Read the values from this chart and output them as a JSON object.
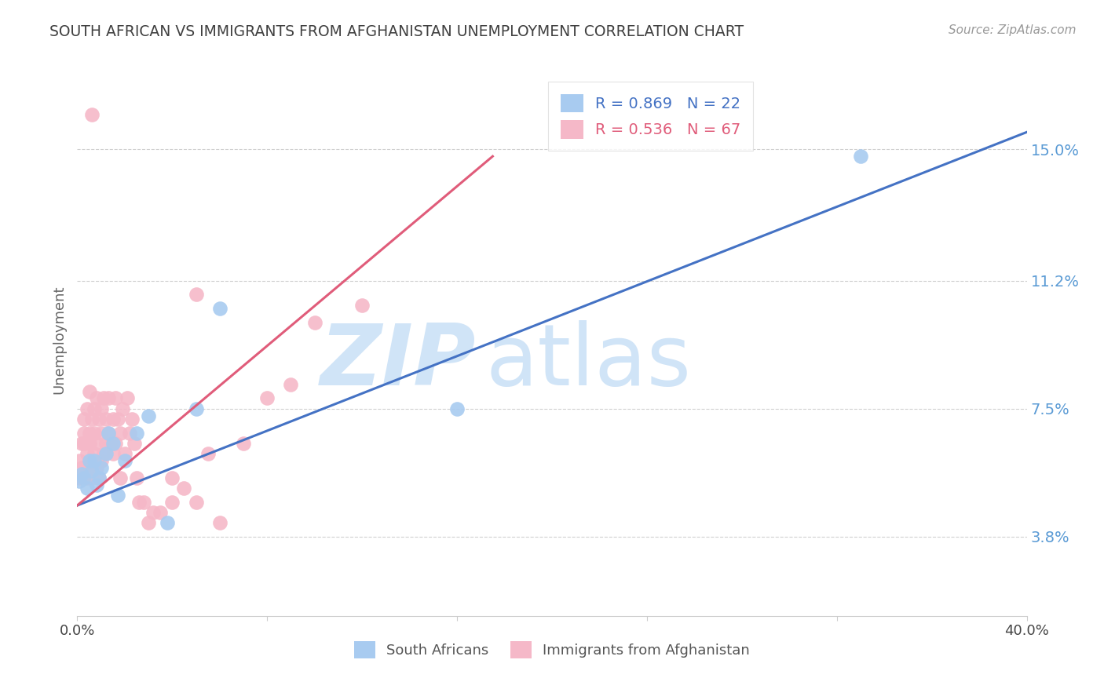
{
  "title": "SOUTH AFRICAN VS IMMIGRANTS FROM AFGHANISTAN UNEMPLOYMENT CORRELATION CHART",
  "source": "Source: ZipAtlas.com",
  "ylabel": "Unemployment",
  "yticks": [
    0.038,
    0.075,
    0.112,
    0.15
  ],
  "ytick_labels": [
    "3.8%",
    "7.5%",
    "11.2%",
    "15.0%"
  ],
  "xmin": 0.0,
  "xmax": 0.4,
  "ymin": 0.015,
  "ymax": 0.175,
  "blue_R": 0.869,
  "blue_N": 22,
  "pink_R": 0.536,
  "pink_N": 67,
  "blue_color": "#A8CBF0",
  "pink_color": "#F5B8C8",
  "blue_line_color": "#4472C4",
  "pink_line_color": "#E05C7A",
  "watermark_zip": "ZIP",
  "watermark_atlas": "atlas",
  "watermark_color": "#D0E4F7",
  "title_color": "#404040",
  "source_color": "#999999",
  "right_label_color": "#5B9BD5",
  "grid_color": "#D0D0D0",
  "blue_line_x": [
    0.0,
    0.4
  ],
  "blue_line_y": [
    0.047,
    0.155
  ],
  "pink_line_x": [
    0.0,
    0.175
  ],
  "pink_line_y": [
    0.047,
    0.148
  ],
  "blue_scatter_x": [
    0.001,
    0.002,
    0.003,
    0.004,
    0.005,
    0.006,
    0.007,
    0.008,
    0.009,
    0.01,
    0.012,
    0.013,
    0.015,
    0.017,
    0.02,
    0.025,
    0.03,
    0.038,
    0.05,
    0.06,
    0.16,
    0.33
  ],
  "blue_scatter_y": [
    0.054,
    0.056,
    0.055,
    0.052,
    0.06,
    0.057,
    0.06,
    0.053,
    0.055,
    0.058,
    0.062,
    0.068,
    0.065,
    0.05,
    0.06,
    0.068,
    0.073,
    0.042,
    0.075,
    0.104,
    0.075,
    0.148
  ],
  "pink_scatter_x": [
    0.001,
    0.001,
    0.002,
    0.002,
    0.003,
    0.003,
    0.003,
    0.004,
    0.004,
    0.004,
    0.005,
    0.005,
    0.005,
    0.005,
    0.006,
    0.006,
    0.006,
    0.007,
    0.007,
    0.007,
    0.008,
    0.008,
    0.008,
    0.009,
    0.009,
    0.01,
    0.01,
    0.01,
    0.011,
    0.011,
    0.012,
    0.012,
    0.013,
    0.013,
    0.014,
    0.015,
    0.015,
    0.016,
    0.016,
    0.017,
    0.018,
    0.018,
    0.019,
    0.02,
    0.021,
    0.022,
    0.023,
    0.024,
    0.025,
    0.026,
    0.028,
    0.03,
    0.032,
    0.035,
    0.04,
    0.04,
    0.045,
    0.05,
    0.055,
    0.06,
    0.07,
    0.08,
    0.09,
    0.1,
    0.12,
    0.05,
    0.006
  ],
  "pink_scatter_y": [
    0.055,
    0.06,
    0.058,
    0.065,
    0.065,
    0.068,
    0.072,
    0.055,
    0.062,
    0.075,
    0.058,
    0.065,
    0.068,
    0.08,
    0.06,
    0.055,
    0.072,
    0.062,
    0.068,
    0.075,
    0.058,
    0.065,
    0.078,
    0.055,
    0.072,
    0.06,
    0.068,
    0.075,
    0.062,
    0.078,
    0.065,
    0.072,
    0.068,
    0.078,
    0.065,
    0.062,
    0.072,
    0.065,
    0.078,
    0.072,
    0.055,
    0.068,
    0.075,
    0.062,
    0.078,
    0.068,
    0.072,
    0.065,
    0.055,
    0.048,
    0.048,
    0.042,
    0.045,
    0.045,
    0.048,
    0.055,
    0.052,
    0.048,
    0.062,
    0.042,
    0.065,
    0.078,
    0.082,
    0.1,
    0.105,
    0.108,
    0.16
  ]
}
